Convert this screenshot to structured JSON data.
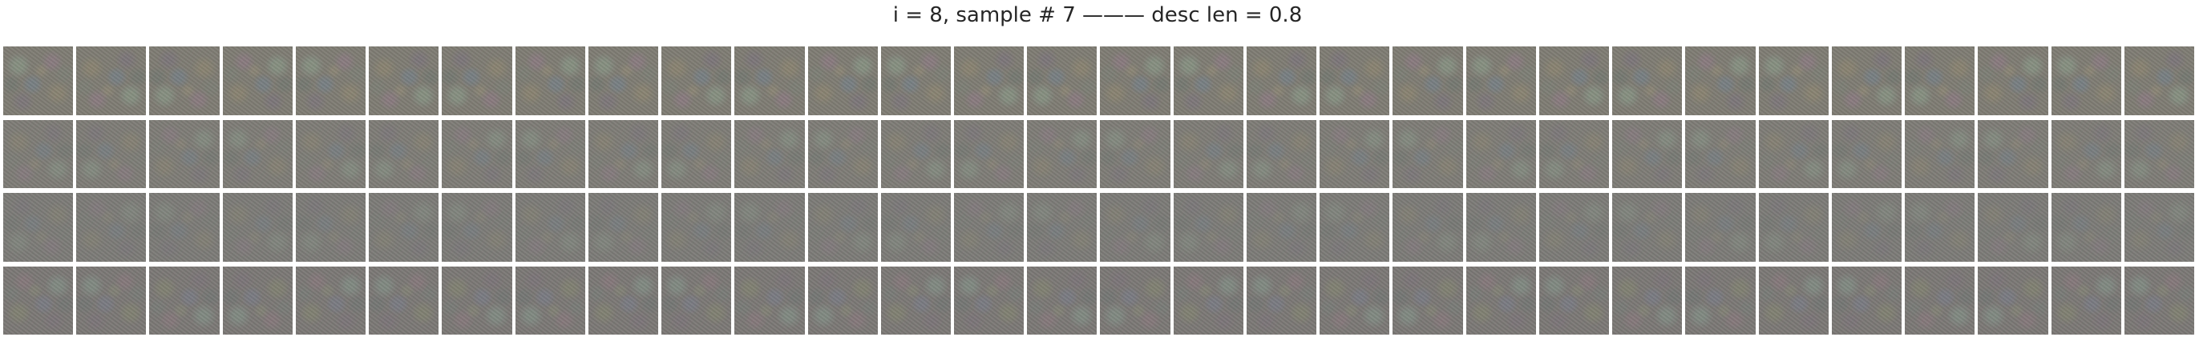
{
  "figure": {
    "title": "i = 8, sample # 7 ——— desc len = 0.8"
  },
  "grid": {
    "rows": 4,
    "columns": 30,
    "tile_description": "noisy generated image sample"
  }
}
